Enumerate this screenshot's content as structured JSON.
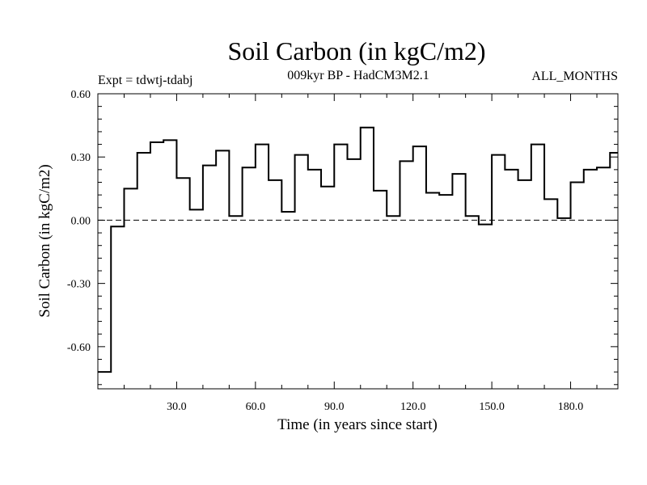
{
  "chart_data": {
    "type": "line",
    "style": "step",
    "title": "Soil Carbon (in kgC/m2)",
    "subtitle": "009kyr BP - HadCM3M2.1",
    "expt_label": "Expt = tdwtj-tdabj",
    "months_label": "ALL_MONTHS",
    "xlabel": "Time (in years since start)",
    "ylabel": "Soil Carbon (in kgC/m2)",
    "xlim": [
      0,
      198
    ],
    "ylim": [
      -0.8,
      0.6
    ],
    "xticks": [
      {
        "value": 30,
        "label": "30.0"
      },
      {
        "value": 60,
        "label": "60.0"
      },
      {
        "value": 90,
        "label": "90.0"
      },
      {
        "value": 120,
        "label": "120.0"
      },
      {
        "value": 150,
        "label": "150.0"
      },
      {
        "value": 180,
        "label": "180.0"
      }
    ],
    "yticks": [
      {
        "value": 0.6,
        "label": "0.60"
      },
      {
        "value": 0.3,
        "label": "0.30"
      },
      {
        "value": 0.0,
        "label": "0.00"
      },
      {
        "value": -0.3,
        "label": "-0.30"
      },
      {
        "value": -0.6,
        "label": "-0.60"
      }
    ],
    "zero_line": true,
    "step_width": 5,
    "series": [
      {
        "name": "tdwtj-tdabj",
        "color": "#000000",
        "values": [
          -0.72,
          -0.03,
          0.15,
          0.32,
          0.37,
          0.38,
          0.2,
          0.05,
          0.26,
          0.33,
          0.02,
          0.25,
          0.36,
          0.19,
          0.04,
          0.31,
          0.24,
          0.16,
          0.36,
          0.29,
          0.44,
          0.14,
          0.02,
          0.28,
          0.35,
          0.13,
          0.12,
          0.22,
          0.02,
          -0.02,
          0.31,
          0.24,
          0.19,
          0.36,
          0.1,
          0.01,
          0.18,
          0.24,
          0.25,
          0.32
        ]
      }
    ]
  }
}
